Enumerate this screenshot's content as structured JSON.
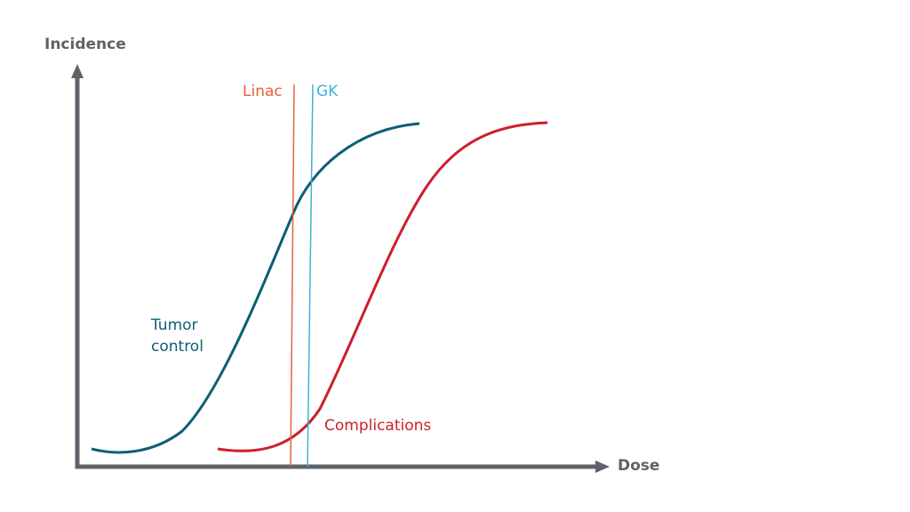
{
  "axes": {
    "y_label": "Incidence",
    "x_label": "Dose"
  },
  "lines": [
    {
      "label": "Linac"
    },
    {
      "label": "GK"
    }
  ],
  "curves": [
    {
      "label_lines": [
        "Tumor",
        "control"
      ]
    },
    {
      "label_lines": [
        "Complications"
      ]
    }
  ]
}
